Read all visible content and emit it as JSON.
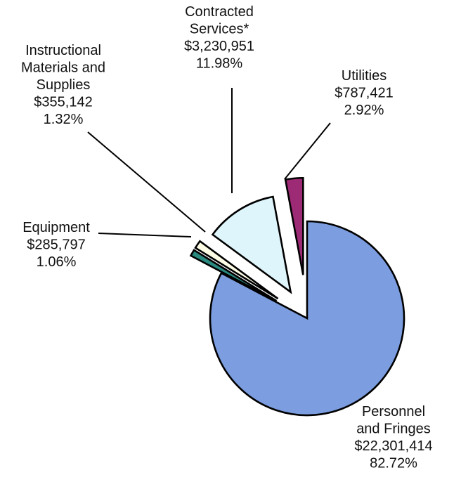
{
  "chart_data": {
    "type": "pie",
    "title": "",
    "exploded": true,
    "slices": [
      {
        "name": "Personnel and Fringes",
        "label_lines": [
          "Personnel",
          "and Fringes"
        ],
        "amount": "$22,301,414",
        "percent_label": "82.72%",
        "value": 82.72,
        "color": "#7c9ee0"
      },
      {
        "name": "Equipment",
        "label_lines": [
          "Equipment"
        ],
        "amount": "$285,797",
        "percent_label": "1.06%",
        "value": 1.06,
        "color": "#2a8a80"
      },
      {
        "name": "Instructional Materials and Supplies",
        "label_lines": [
          "Instructional",
          "Materials and",
          "Supplies"
        ],
        "amount": "$355,142",
        "percent_label": "1.32%",
        "value": 1.32,
        "color": "#fdfde6"
      },
      {
        "name": "Contracted Services*",
        "label_lines": [
          "Contracted",
          "Services*"
        ],
        "amount": "$3,230,951",
        "percent_label": "11.98%",
        "value": 11.98,
        "color": "#def5fb"
      },
      {
        "name": "Utilities",
        "label_lines": [
          "Utilities"
        ],
        "amount": "$787,421",
        "percent_label": "2.92%",
        "value": 2.92,
        "color": "#9c2a74"
      }
    ]
  }
}
